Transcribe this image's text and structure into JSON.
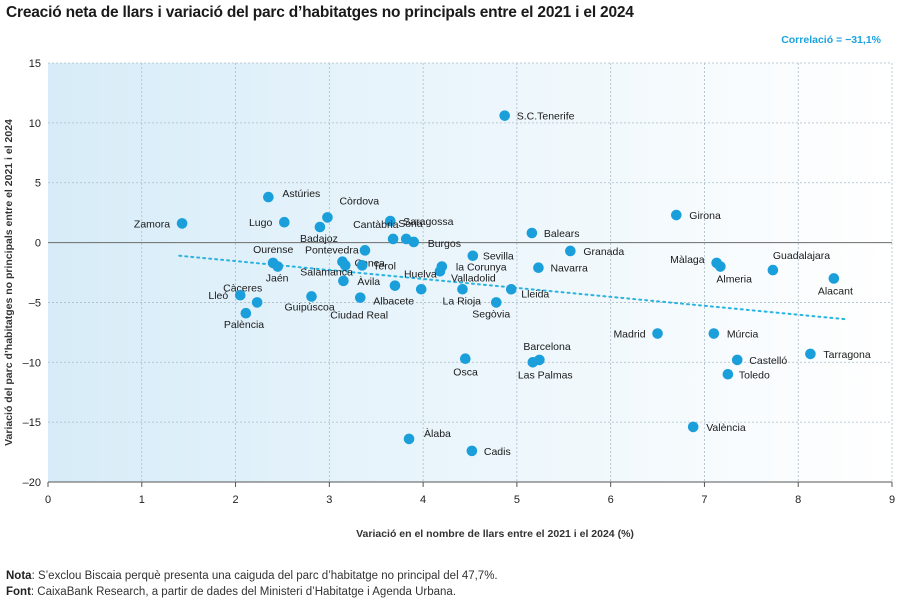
{
  "title": "Creació neta de llars i variació del parc d’habitatges no principals entre el 2021 i el 2024",
  "correlation_label": "Correlació = −31,1%",
  "notes": {
    "nota_label": "Nota",
    "nota_text": ": S’exclou Biscaia perquè presenta una caiguda del parc d’habitatge no principal del 47,7%.",
    "font_label": "Font",
    "font_text": ": CaixaBank Research, a partir de dades del Ministeri d’Habitatge i Agenda Urbana."
  },
  "colors": {
    "point": "#1a9fdb",
    "trend": "#29b3e0",
    "grid": "#a9bcc7",
    "zero_line": "#6b6b6b",
    "bg_left": "#d7ecf8",
    "bg_right": "#ffffff"
  },
  "chart_data": {
    "type": "scatter",
    "title": "Creació neta de llars i variació del parc d’habitatges no principals entre el 2021 i el 2024",
    "xlabel": "Variació en el nombre de llars entre el 2021 i el 2024 (%)",
    "ylabel": "Variació del parc d’habitatges no principals entre el 2021 i el 2024",
    "xlim": [
      0,
      9
    ],
    "ylim": [
      -20,
      15
    ],
    "xticks": [
      0,
      1,
      2,
      3,
      4,
      5,
      6,
      7,
      8,
      9
    ],
    "yticks": [
      15,
      10,
      5,
      0,
      -5,
      -10,
      -15,
      -20
    ],
    "grid": true,
    "trendline": {
      "x": [
        1.4,
        8.5
      ],
      "y": [
        -1.1,
        -6.4
      ]
    },
    "points": [
      {
        "label": "S.C.Tenerife",
        "x": 4.87,
        "y": 10.6
      },
      {
        "label": "Astúries",
        "x": 2.35,
        "y": 3.8
      },
      {
        "label": "Còrdova",
        "x": 2.98,
        "y": 2.1
      },
      {
        "label": "Zamora",
        "x": 1.43,
        "y": 1.6
      },
      {
        "label": "Lugo",
        "x": 2.52,
        "y": 1.7
      },
      {
        "label": "Badajoz",
        "x": 2.9,
        "y": 1.3
      },
      {
        "label": "Saragossa",
        "x": 3.65,
        "y": 1.8
      },
      {
        "label": "Cantàbria",
        "x": 3.68,
        "y": 0.3
      },
      {
        "label": "Sòria",
        "x": 3.82,
        "y": 0.3
      },
      {
        "label": "Burgos",
        "x": 3.9,
        "y": 0.05
      },
      {
        "label": "Balears",
        "x": 5.16,
        "y": 0.8
      },
      {
        "label": "Girona",
        "x": 6.7,
        "y": 2.3
      },
      {
        "label": "Granada",
        "x": 5.57,
        "y": -0.7
      },
      {
        "label": "Pontevedra",
        "x": 3.38,
        "y": -0.65
      },
      {
        "label": "Conca",
        "x": 3.14,
        "y": -1.6
      },
      {
        "label": "Sevilla",
        "x": 4.53,
        "y": -1.1
      },
      {
        "label": "Ourense",
        "x": 2.4,
        "y": -1.7
      },
      {
        "label": "Jaén",
        "x": 2.45,
        "y": -2.0
      },
      {
        "label": "Terol",
        "x": 3.35,
        "y": -1.9
      },
      {
        "label": "la Corunya",
        "x": 4.2,
        "y": -2.0
      },
      {
        "label": "Navarra",
        "x": 5.23,
        "y": -2.1
      },
      {
        "label": "Valladolid",
        "x": 4.18,
        "y": -2.4
      },
      {
        "label": "Màlaga",
        "x": 7.13,
        "y": -1.7
      },
      {
        "label": "Almeria",
        "x": 7.17,
        "y": -2.0
      },
      {
        "label": "Guadalajara",
        "x": 7.73,
        "y": -2.3
      },
      {
        "label": "Alacant",
        "x": 8.38,
        "y": -3.0
      },
      {
        "label": "Salamanca",
        "x": 3.17,
        "y": -1.9
      },
      {
        "label": "Àvila",
        "x": 3.15,
        "y": -3.2
      },
      {
        "label": "Huelva",
        "x": 3.7,
        "y": -3.6
      },
      {
        "label": "Albacete",
        "x": 3.98,
        "y": -3.9
      },
      {
        "label": "La Rioja",
        "x": 4.42,
        "y": -3.9
      },
      {
        "label": "Lleida",
        "x": 4.94,
        "y": -3.9
      },
      {
        "label": "Càceres",
        "x": 2.23,
        "y": -5.0
      },
      {
        "label": "Lleó",
        "x": 2.05,
        "y": -4.4
      },
      {
        "label": "Palència",
        "x": 2.11,
        "y": -5.9
      },
      {
        "label": "Guipúscoa",
        "x": 2.81,
        "y": -4.5
      },
      {
        "label": "Ciudad Real",
        "x": 3.33,
        "y": -4.6
      },
      {
        "label": "Segòvia",
        "x": 4.78,
        "y": -5.0
      },
      {
        "label": "Madrid",
        "x": 6.5,
        "y": -7.6
      },
      {
        "label": "Múrcia",
        "x": 7.1,
        "y": -7.6
      },
      {
        "label": "Barcelona",
        "x": 5.24,
        "y": -9.8
      },
      {
        "label": "Las Palmas",
        "x": 5.17,
        "y": -10.0
      },
      {
        "label": "Osca",
        "x": 4.45,
        "y": -9.7
      },
      {
        "label": "Castelló",
        "x": 7.35,
        "y": -9.8
      },
      {
        "label": "Tarragona",
        "x": 8.13,
        "y": -9.3
      },
      {
        "label": "Toledo",
        "x": 7.25,
        "y": -11.0
      },
      {
        "label": "València",
        "x": 6.88,
        "y": -15.4
      },
      {
        "label": "Àlaba",
        "x": 3.85,
        "y": -16.4
      },
      {
        "label": "Cadis",
        "x": 4.52,
        "y": -17.4
      }
    ]
  }
}
